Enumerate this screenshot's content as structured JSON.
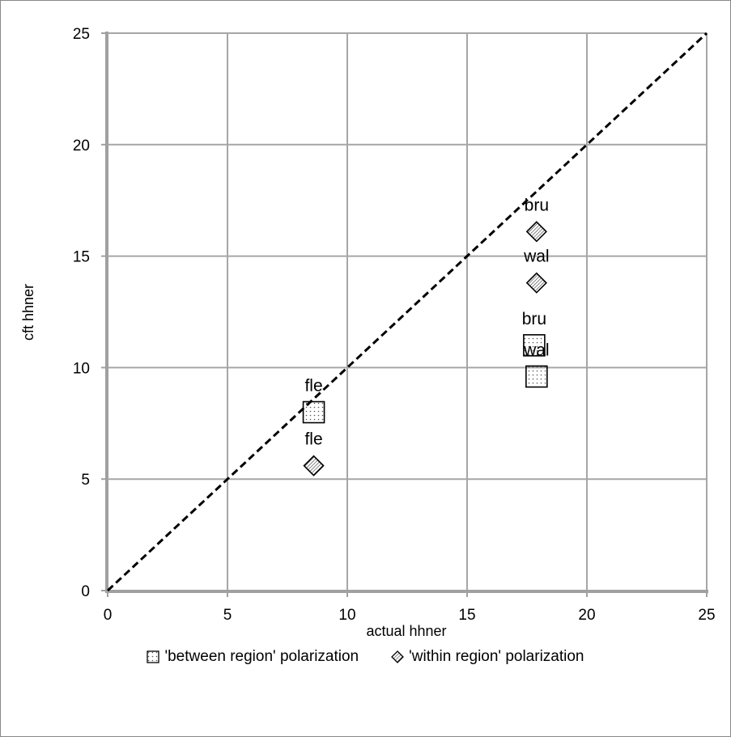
{
  "chart_data": {
    "type": "scatter",
    "title": "",
    "xlabel": "actual hhner",
    "ylabel": "cft hhner",
    "xlim": [
      0,
      25
    ],
    "ylim": [
      0,
      25
    ],
    "xticks": [
      0,
      5,
      10,
      15,
      20,
      25
    ],
    "yticks": [
      0,
      5,
      10,
      15,
      20,
      25
    ],
    "grid": true,
    "legend_position": "bottom",
    "reference_line": {
      "from": [
        0,
        0
      ],
      "to": [
        25,
        25
      ],
      "style": "dashed"
    },
    "series": [
      {
        "name": "'between region' polarization",
        "marker": "square",
        "points": [
          {
            "label": "fle",
            "x": 8.6,
            "y": 8.0
          },
          {
            "label": "bru",
            "x": 17.8,
            "y": 11.0
          },
          {
            "label": "wal",
            "x": 17.9,
            "y": 9.6
          }
        ]
      },
      {
        "name": "'within region' polarization",
        "marker": "diamond",
        "points": [
          {
            "label": "fle",
            "x": 8.6,
            "y": 5.6
          },
          {
            "label": "bru",
            "x": 17.9,
            "y": 16.1
          },
          {
            "label": "wal",
            "x": 17.9,
            "y": 13.8
          }
        ]
      }
    ]
  }
}
